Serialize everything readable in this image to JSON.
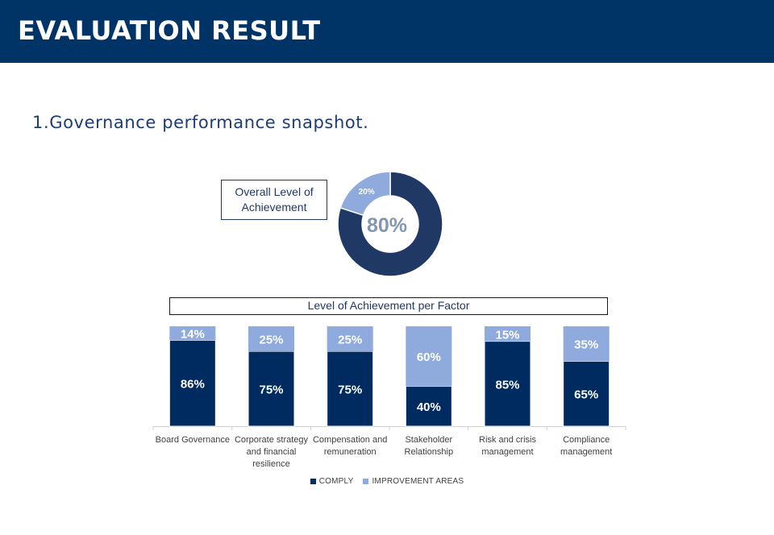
{
  "header": {
    "title": "EVALUATION RESULT"
  },
  "section": {
    "title": "1.Governance performance snapshot."
  },
  "colors": {
    "header_bg": "#003366",
    "comply": "#002b61",
    "improvement": "#8faadc",
    "donut_main": "#1f3864",
    "donut_center_text": "#8497b0"
  },
  "chart_data": [
    {
      "type": "pie",
      "variant": "donut",
      "title": "Overall Level of Achievement",
      "slices": [
        {
          "label": "Comply",
          "value": 80
        },
        {
          "label": "Improvement",
          "value": 20
        }
      ],
      "center_label": "80%",
      "slice_labels": [
        "",
        "20%"
      ]
    },
    {
      "type": "bar",
      "stacked": true,
      "title": "Level of Achievement per Factor",
      "categories": [
        [
          "Board Governance"
        ],
        [
          "Corporate strategy",
          "and financial",
          "resilience"
        ],
        [
          "Compensation and",
          "remuneration"
        ],
        [
          "Stakeholder",
          "Relationship"
        ],
        [
          "Risk and crisis",
          "management"
        ],
        [
          "Compliance",
          "management"
        ]
      ],
      "series": [
        {
          "name": "COMPLY",
          "values": [
            86,
            75,
            75,
            40,
            85,
            65
          ],
          "labels": [
            "86%",
            "75%",
            "75%",
            "40%",
            "85%",
            "65%"
          ]
        },
        {
          "name": "IMPROVEMENT AREAS",
          "values": [
            14,
            25,
            25,
            60,
            15,
            35
          ],
          "labels": [
            "14%",
            "25%",
            "25%",
            "60%",
            "15%",
            "35%"
          ]
        }
      ],
      "ylim": [
        0,
        100
      ],
      "legend": "bottom"
    }
  ]
}
